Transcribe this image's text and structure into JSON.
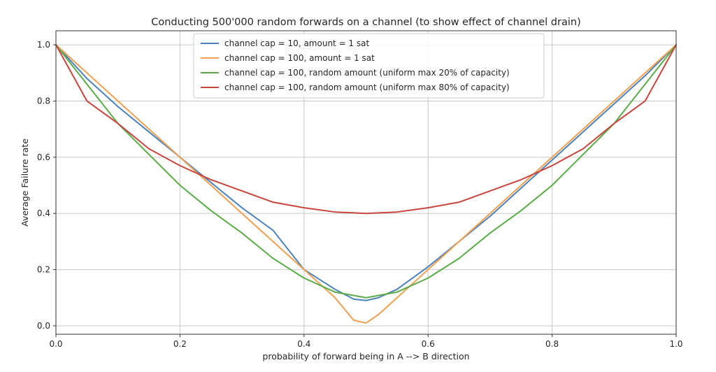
{
  "chart_data": {
    "type": "line",
    "title": "Conducting 500'000 random forwards on a channel (to show effect of channel drain)",
    "xlabel": "probability of forward being in A --> B direction",
    "ylabel": "Average Failure rate",
    "xlim": [
      0.0,
      1.0
    ],
    "ylim": [
      -0.03,
      1.05
    ],
    "xticks": [
      0.0,
      0.2,
      0.4,
      0.6,
      0.8,
      1.0
    ],
    "xtick_labels": [
      "0.0",
      "0.2",
      "0.4",
      "0.6",
      "0.8",
      "1.0"
    ],
    "yticks": [
      0.0,
      0.2,
      0.4,
      0.6,
      0.8,
      1.0
    ],
    "ytick_labels": [
      "0.0",
      "0.2",
      "0.4",
      "0.6",
      "0.8",
      "1.0"
    ],
    "grid": true,
    "legend_position": "top-center",
    "series": [
      {
        "name": "channel cap = 10, amount = 1 sat",
        "color": "#4c82bb",
        "x": [
          0.0,
          0.05,
          0.1,
          0.15,
          0.2,
          0.25,
          0.3,
          0.35,
          0.4,
          0.45,
          0.48,
          0.5,
          0.52,
          0.55,
          0.6,
          0.65,
          0.7,
          0.75,
          0.8,
          0.85,
          0.9,
          0.95,
          1.0
        ],
        "y": [
          1.0,
          0.88,
          0.78,
          0.69,
          0.6,
          0.51,
          0.42,
          0.34,
          0.2,
          0.13,
          0.095,
          0.09,
          0.1,
          0.13,
          0.21,
          0.3,
          0.39,
          0.49,
          0.59,
          0.69,
          0.79,
          0.89,
          1.0
        ]
      },
      {
        "name": "channel cap = 100, amount = 1 sat",
        "color": "#f0a050",
        "x": [
          0.0,
          0.05,
          0.1,
          0.15,
          0.2,
          0.25,
          0.3,
          0.35,
          0.4,
          0.45,
          0.48,
          0.5,
          0.52,
          0.55,
          0.6,
          0.65,
          0.7,
          0.75,
          0.8,
          0.85,
          0.9,
          0.95,
          1.0
        ],
        "y": [
          1.0,
          0.9,
          0.8,
          0.7,
          0.6,
          0.5,
          0.4,
          0.3,
          0.2,
          0.1,
          0.02,
          0.01,
          0.04,
          0.1,
          0.2,
          0.3,
          0.4,
          0.5,
          0.6,
          0.7,
          0.8,
          0.9,
          1.0
        ]
      },
      {
        "name": "channel cap = 100, random amount (uniform max 20% of capacity)",
        "color": "#5aac48",
        "x": [
          0.0,
          0.05,
          0.1,
          0.15,
          0.2,
          0.25,
          0.3,
          0.35,
          0.4,
          0.45,
          0.5,
          0.55,
          0.6,
          0.65,
          0.7,
          0.75,
          0.8,
          0.85,
          0.9,
          0.95,
          1.0
        ],
        "y": [
          1.0,
          0.86,
          0.72,
          0.61,
          0.5,
          0.41,
          0.33,
          0.24,
          0.17,
          0.12,
          0.1,
          0.12,
          0.17,
          0.24,
          0.33,
          0.41,
          0.5,
          0.61,
          0.72,
          0.86,
          1.0
        ]
      },
      {
        "name": "channel cap = 100, random amount (uniform max 80% of capacity)",
        "color": "#c8453e",
        "x": [
          0.0,
          0.05,
          0.1,
          0.15,
          0.2,
          0.25,
          0.3,
          0.35,
          0.4,
          0.45,
          0.5,
          0.55,
          0.6,
          0.65,
          0.7,
          0.75,
          0.8,
          0.85,
          0.9,
          0.95,
          1.0
        ],
        "y": [
          1.0,
          0.8,
          0.72,
          0.63,
          0.57,
          0.52,
          0.48,
          0.44,
          0.42,
          0.405,
          0.4,
          0.405,
          0.42,
          0.44,
          0.48,
          0.52,
          0.57,
          0.63,
          0.72,
          0.8,
          1.0
        ]
      }
    ]
  }
}
